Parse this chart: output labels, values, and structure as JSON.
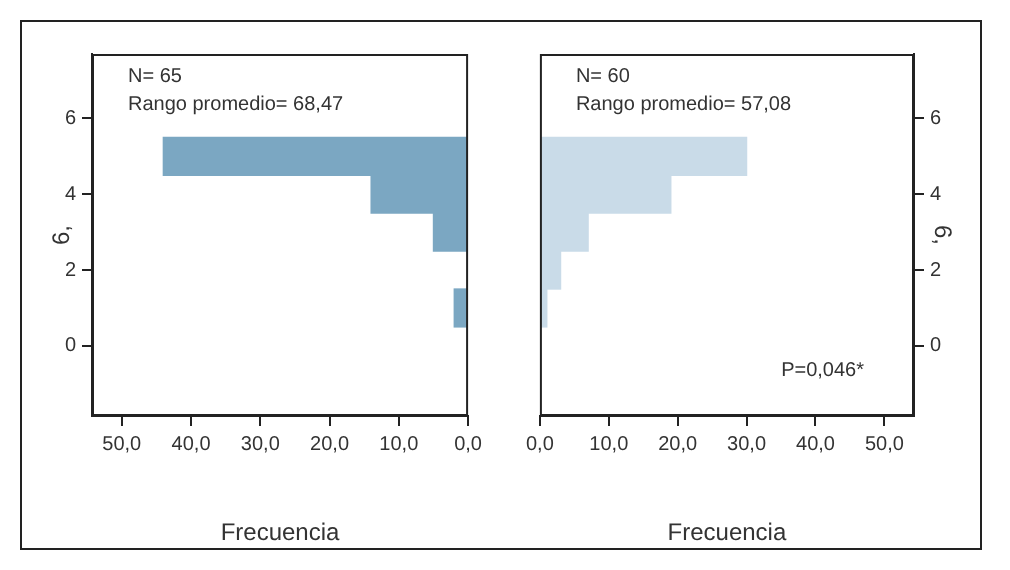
{
  "chart_data": [
    {
      "type": "histogram",
      "orientation": "horizontal",
      "xlabel": "Frecuencia",
      "ylabel": "6,",
      "annotations": [
        "N= 65",
        "Rango promedio= 68,47"
      ],
      "bins": [
        0.5,
        1.5,
        2.5,
        3.5,
        4.5,
        5.5
      ],
      "values": [
        2,
        0,
        5,
        14,
        44
      ],
      "color": "#7ba7c2",
      "xlim": [
        54.3,
        0
      ],
      "xticks": [
        {
          "value": 50,
          "label": "50,0"
        },
        {
          "value": 40,
          "label": "40,0"
        },
        {
          "value": 30,
          "label": "30,0"
        },
        {
          "value": 20,
          "label": "20,0"
        },
        {
          "value": 10,
          "label": "10,0"
        },
        {
          "value": 0,
          "label": "0,0"
        }
      ],
      "ylim": [
        -1.85,
        7.7
      ],
      "yticks": [
        0,
        2,
        4,
        6
      ]
    },
    {
      "type": "histogram",
      "orientation": "horizontal",
      "xlabel": "Frecuencia",
      "ylabel": "6,",
      "annotations": [
        "N= 60",
        "Rango promedio= 57,08",
        "P=0,046*"
      ],
      "bins": [
        0.5,
        1.5,
        2.5,
        3.5,
        4.5,
        5.5
      ],
      "values": [
        1,
        3,
        7,
        19,
        30
      ],
      "color": "#c9dbe8",
      "xlim": [
        0,
        54.3
      ],
      "xticks": [
        {
          "value": 0,
          "label": "0,0"
        },
        {
          "value": 10,
          "label": "10,0"
        },
        {
          "value": 20,
          "label": "20,0"
        },
        {
          "value": 30,
          "label": "30,0"
        },
        {
          "value": 40,
          "label": "40,0"
        },
        {
          "value": 50,
          "label": "50,0"
        }
      ],
      "ylim": [
        -1.85,
        7.7
      ],
      "yticks": [
        0,
        2,
        4,
        6
      ]
    }
  ]
}
